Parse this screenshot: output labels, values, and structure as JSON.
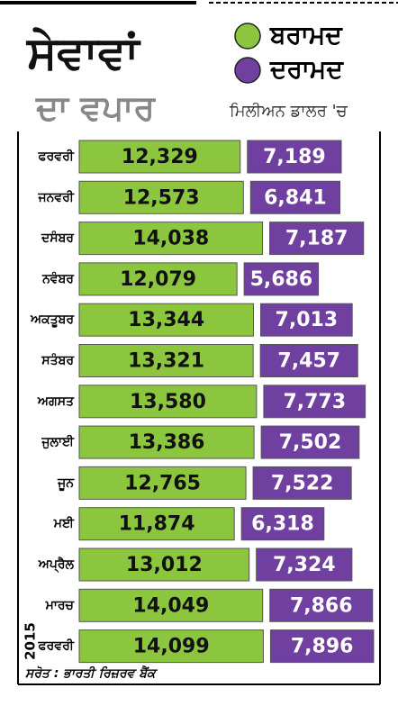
{
  "chart_data": {
    "type": "bar",
    "title": "ਸੇਵਾਵਾਂ",
    "subtitle": "ਦਾ ਵਪਾਰ",
    "unit_label": "ਮਿਲੀਅਨ ਡਾਲਰ 'ਚ",
    "year_label": "2015",
    "source": "ਸਰੋਤ : ਭਾਰਤੀ ਰਿਜ਼ਰਵ ਬੈਂਕ",
    "categories": [
      "ਫਰਵਰੀ",
      "ਜਨਵਰੀ",
      "ਦਸੰਬਰ",
      "ਨਵੰਬਰ",
      "ਅਕਤੂਬਰ",
      "ਸਤੰਬਰ",
      "ਅਗਸਤ",
      "ਜੁਲਾਈ",
      "ਜੂਨ",
      "ਮਈ",
      "ਅਪ੍ਰੈਲ",
      "ਮਾਰਚ",
      "ਫਰਵਰੀ"
    ],
    "series": [
      {
        "name": "ਬਰਾਮਦ",
        "color": "#8cc63f",
        "values": [
          12329,
          12573,
          14038,
          12079,
          13344,
          13321,
          13580,
          13386,
          12765,
          11874,
          13012,
          14049,
          14099
        ],
        "value_labels": [
          "12,329",
          "12,573",
          "14,038",
          "12,079",
          "13,344",
          "13,321",
          "13,580",
          "13,386",
          "12,765",
          "11,874",
          "13,012",
          "14,049",
          "14,099"
        ]
      },
      {
        "name": "ਦਰਾਮਦ",
        "color": "#7040a0",
        "values": [
          7189,
          6841,
          7187,
          5686,
          7013,
          7457,
          7773,
          7502,
          7522,
          6318,
          7324,
          7866,
          7896
        ],
        "value_labels": [
          "7,189",
          "6,841",
          "7,187",
          "5,686",
          "7,013",
          "7,457",
          "7,773",
          "7,502",
          "7,522",
          "6,318",
          "7,324",
          "7,866",
          "7,896"
        ]
      }
    ]
  }
}
